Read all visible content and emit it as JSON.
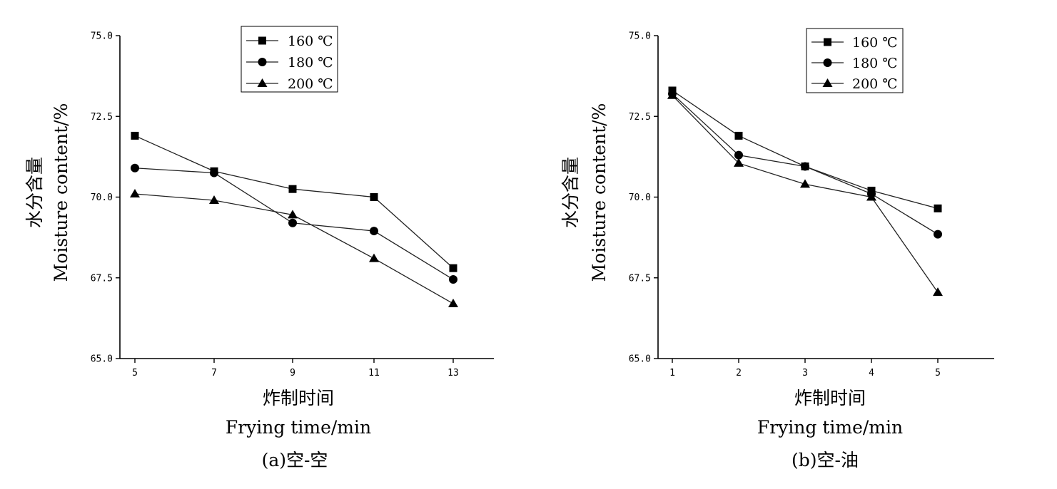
{
  "chart_data": [
    {
      "type": "line",
      "caption": "(a)空-空",
      "xlabel_cn": "炸制时间",
      "xlabel_en": "Frying time/min",
      "ylabel_cn": "水分含量",
      "ylabel_en": "Moisture content/%",
      "x": [
        5,
        7,
        9,
        11,
        13
      ],
      "x_tick_labels": [
        "5",
        "7",
        "9",
        "11",
        "13"
      ],
      "y_tick_labels": [
        "65.0",
        "67.5",
        "70.0",
        "72.5",
        "75.0"
      ],
      "y_ticks": [
        65.0,
        67.5,
        70.0,
        72.5,
        75.0
      ],
      "ylim": [
        65.0,
        75.0
      ],
      "legend_position": "top-center",
      "grid": false,
      "series": [
        {
          "name": "160 ℃",
          "marker": "square",
          "values": [
            71.9,
            70.8,
            70.25,
            70.0,
            67.8
          ]
        },
        {
          "name": "180 ℃",
          "marker": "circle",
          "values": [
            70.9,
            70.75,
            69.2,
            68.95,
            67.45
          ]
        },
        {
          "name": "200 ℃",
          "marker": "triangle",
          "values": [
            70.1,
            69.9,
            69.45,
            68.1,
            66.7
          ]
        }
      ]
    },
    {
      "type": "line",
      "caption": "(b)空-油",
      "xlabel_cn": "炸制时间",
      "xlabel_en": "Frying time/min",
      "ylabel_cn": "水分含量",
      "ylabel_en": "Moisture content/%",
      "x": [
        1,
        2,
        3,
        4,
        5
      ],
      "x_tick_labels": [
        "1",
        "2",
        "3",
        "4",
        "5"
      ],
      "y_tick_labels": [
        "65.0",
        "67.5",
        "70.0",
        "72.5",
        "75.0"
      ],
      "y_ticks": [
        65.0,
        67.5,
        70.0,
        72.5,
        75.0
      ],
      "ylim": [
        65.0,
        75.0
      ],
      "legend_position": "top-right",
      "grid": false,
      "series": [
        {
          "name": "160 ℃",
          "marker": "square",
          "values": [
            73.3,
            71.9,
            70.95,
            70.2,
            69.65
          ]
        },
        {
          "name": "180 ℃",
          "marker": "circle",
          "values": [
            73.2,
            71.3,
            70.95,
            70.1,
            68.85
          ]
        },
        {
          "name": "200 ℃",
          "marker": "triangle",
          "values": [
            73.15,
            71.05,
            70.4,
            70.0,
            67.05
          ]
        }
      ]
    }
  ]
}
